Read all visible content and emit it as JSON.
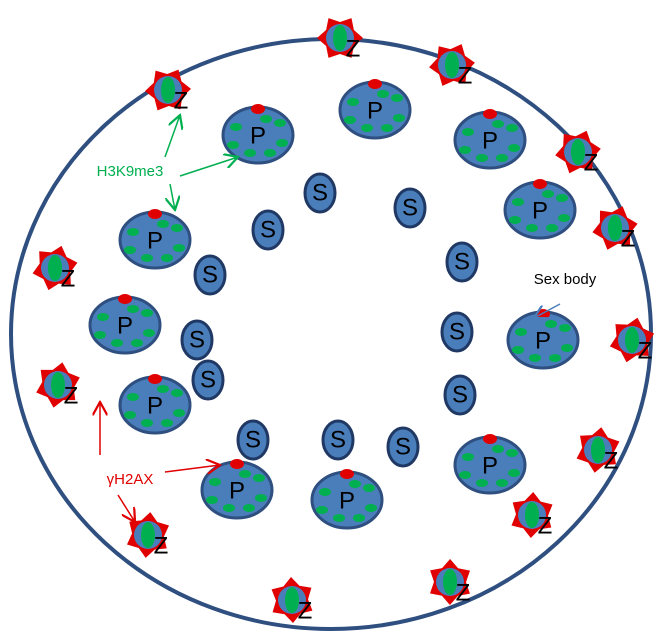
{
  "z_cells": [
    {
      "label": "Z"
    },
    {
      "label": "Z"
    },
    {
      "label": "Z"
    },
    {
      "label": "Z"
    },
    {
      "label": "Z"
    },
    {
      "label": "Z"
    },
    {
      "label": "Z"
    },
    {
      "label": "Z"
    },
    {
      "label": "Z"
    },
    {
      "label": "Z"
    },
    {
      "label": "Z"
    },
    {
      "label": "Z"
    },
    {
      "label": "Z"
    }
  ],
  "p_cells": [
    {
      "label": "P"
    },
    {
      "label": "P"
    },
    {
      "label": "P"
    },
    {
      "label": "P"
    },
    {
      "label": "P"
    },
    {
      "label": "P"
    },
    {
      "label": "P"
    },
    {
      "label": "P"
    },
    {
      "label": "P"
    },
    {
      "label": "P"
    },
    {
      "label": "P"
    }
  ],
  "s_cells": [
    {
      "label": "S"
    },
    {
      "label": "S"
    },
    {
      "label": "S"
    },
    {
      "label": "S"
    },
    {
      "label": "S"
    },
    {
      "label": "S"
    },
    {
      "label": "S"
    },
    {
      "label": "S"
    },
    {
      "label": "S"
    },
    {
      "label": "S"
    },
    {
      "label": "S"
    },
    {
      "label": "S"
    }
  ],
  "annotations": {
    "h3k9me3": "H3K9me3",
    "gh2ax": "γH2AX",
    "sex_body": "Sex body"
  }
}
